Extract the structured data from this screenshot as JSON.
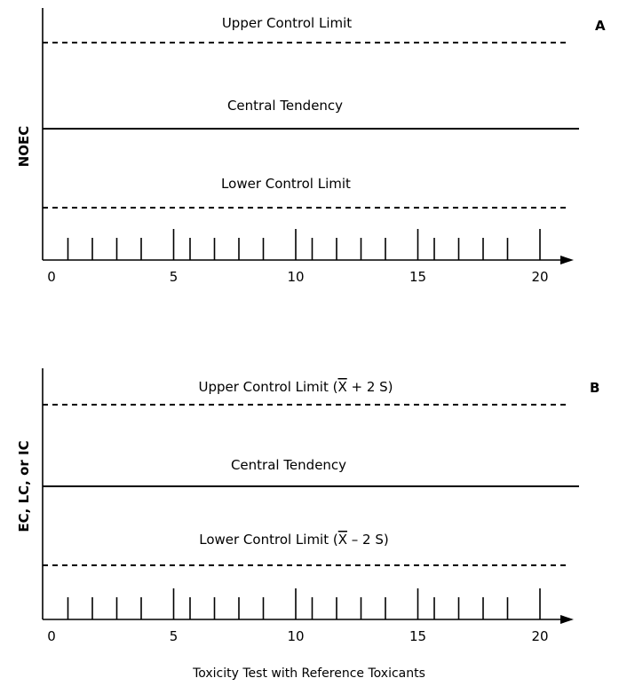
{
  "chart_data": [
    {
      "type": "line",
      "panel_letter": "A",
      "ylabel": "NOEC",
      "xlabel": "",
      "xlim": [
        0,
        22
      ],
      "major_ticks": [
        0,
        5,
        10,
        15,
        20
      ],
      "lines": {
        "ucl": {
          "label": "Upper Control Limit",
          "style": "dashed"
        },
        "center": {
          "label": "Central Tendency",
          "style": "solid"
        },
        "lcl": {
          "label": "Lower Control Limit",
          "style": "dashed"
        }
      }
    },
    {
      "type": "line",
      "panel_letter": "B",
      "ylabel": "EC, LC, or IC",
      "xlabel": "Toxicity Test with Reference Toxicants",
      "xlim": [
        0,
        22
      ],
      "major_ticks": [
        0,
        5,
        10,
        15,
        20
      ],
      "lines": {
        "ucl": {
          "label_prefix": "Upper Control Limit (",
          "label_symbol": "X",
          "label_suffix": " + 2 S)",
          "style": "dashed"
        },
        "center": {
          "label": "Central Tendency",
          "style": "solid"
        },
        "lcl": {
          "label_prefix": "Lower Control Limit (",
          "label_symbol": "X",
          "label_suffix": " – 2 S)",
          "style": "dashed"
        }
      }
    }
  ]
}
